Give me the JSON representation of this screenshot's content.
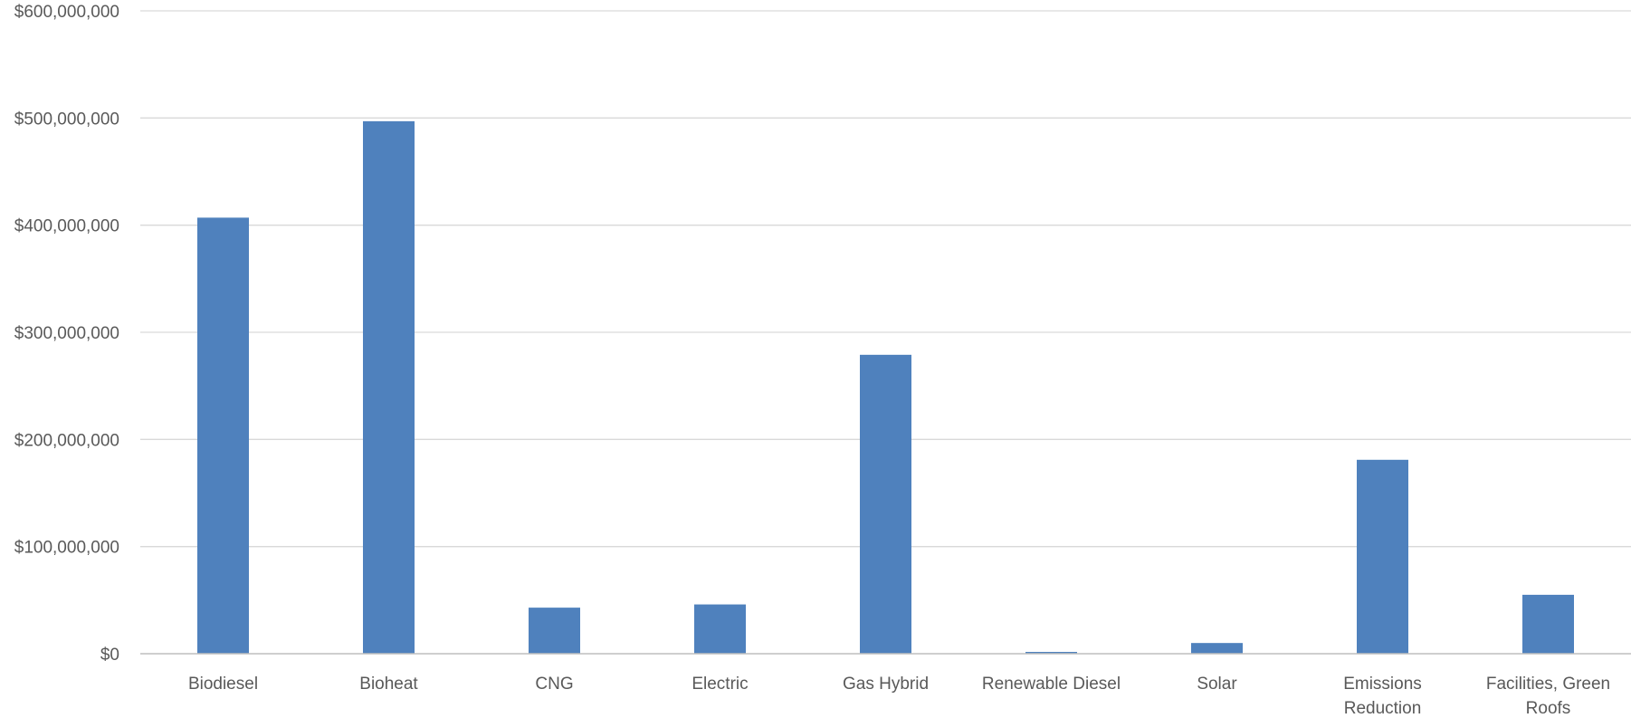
{
  "chart_data": {
    "type": "bar",
    "title": "",
    "xlabel": "",
    "ylabel": "",
    "categories": [
      [
        "Biodiesel"
      ],
      [
        "Bioheat"
      ],
      [
        "CNG"
      ],
      [
        "Electric"
      ],
      [
        "Gas Hybrid"
      ],
      [
        "Renewable Diesel"
      ],
      [
        "Solar"
      ],
      [
        "Emissions",
        "Reduction"
      ],
      [
        "Facilities, Green",
        "Roofs"
      ]
    ],
    "values": [
      407000000,
      497000000,
      43000000,
      46000000,
      279000000,
      1500000,
      10000000,
      181000000,
      55000000
    ],
    "ylim": [
      0,
      600000000
    ],
    "yticks": [
      0,
      100000000,
      200000000,
      300000000,
      400000000,
      500000000,
      600000000
    ],
    "ytick_labels": [
      "$0",
      "$100,000,000",
      "$200,000,000",
      "$300,000,000",
      "$400,000,000",
      "$500,000,000",
      "$600,000,000"
    ],
    "grid": true,
    "legend": "none",
    "bar_color": "#4f81bd"
  }
}
